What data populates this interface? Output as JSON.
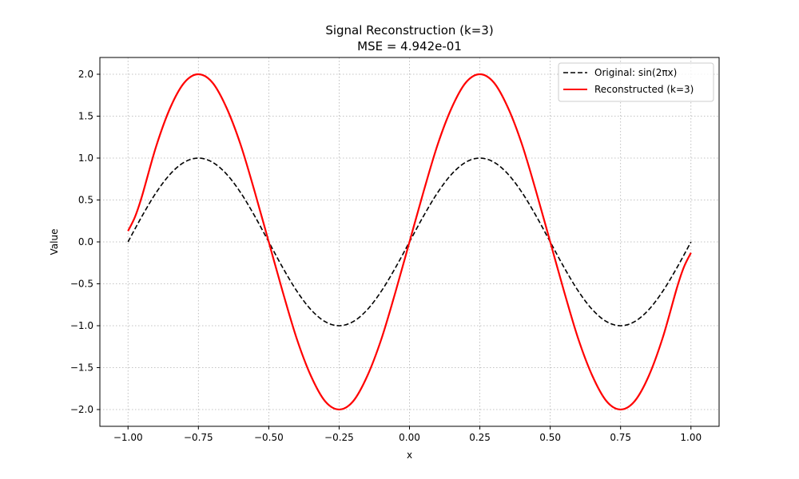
{
  "chart_data": {
    "type": "line",
    "title": "Signal Reconstruction (k=3)",
    "subtitle": "MSE = 4.942e-01",
    "xlabel": "x",
    "ylabel": "Value",
    "xlim": [
      -1.1,
      1.1
    ],
    "ylim": [
      -2.2,
      2.2
    ],
    "grid": true,
    "legend_position": "top-right",
    "xticks": [
      -1.0,
      -0.75,
      -0.5,
      -0.25,
      0.0,
      0.25,
      0.5,
      0.75,
      1.0
    ],
    "xtick_labels": [
      "−1.00",
      "−0.75",
      "−0.50",
      "−0.25",
      "0.00",
      "0.25",
      "0.50",
      "0.75",
      "1.00"
    ],
    "yticks": [
      -2.0,
      -1.5,
      -1.0,
      -0.5,
      0.0,
      0.5,
      1.0,
      1.5,
      2.0
    ],
    "ytick_labels": [
      "−2.0",
      "−1.5",
      "−1.0",
      "−0.5",
      "0.0",
      "0.5",
      "1.0",
      "1.5",
      "2.0"
    ],
    "series": [
      {
        "name": "Original: sin(2πx)",
        "color": "#000000",
        "style": "dashed",
        "x": [
          -1.0,
          -0.95,
          -0.9,
          -0.85,
          -0.8,
          -0.75,
          -0.7,
          -0.65,
          -0.6,
          -0.55,
          -0.5,
          -0.45,
          -0.4,
          -0.35,
          -0.3,
          -0.25,
          -0.2,
          -0.15,
          -0.1,
          -0.05,
          0.0,
          0.05,
          0.1,
          0.15,
          0.2,
          0.25,
          0.3,
          0.35,
          0.4,
          0.45,
          0.5,
          0.55,
          0.6,
          0.65,
          0.7,
          0.75,
          0.8,
          0.85,
          0.9,
          0.95,
          1.0
        ],
        "y": [
          0.0,
          0.309,
          0.588,
          0.809,
          0.951,
          1.0,
          0.951,
          0.809,
          0.588,
          0.309,
          0.0,
          -0.309,
          -0.588,
          -0.809,
          -0.951,
          -1.0,
          -0.951,
          -0.809,
          -0.588,
          -0.309,
          0.0,
          0.309,
          0.588,
          0.809,
          0.951,
          1.0,
          0.951,
          0.809,
          0.588,
          0.309,
          0.0,
          -0.309,
          -0.588,
          -0.809,
          -0.951,
          -1.0,
          -0.951,
          -0.809,
          -0.588,
          -0.309,
          0.0
        ]
      },
      {
        "name": "Reconstructed (k=3)",
        "color": "#ff0000",
        "style": "solid",
        "x": [
          -1.0,
          -0.975,
          -0.95,
          -0.9,
          -0.85,
          -0.8,
          -0.75,
          -0.7,
          -0.65,
          -0.6,
          -0.55,
          -0.5,
          -0.45,
          -0.4,
          -0.35,
          -0.3,
          -0.25,
          -0.2,
          -0.15,
          -0.1,
          -0.05,
          0.0,
          0.05,
          0.1,
          0.15,
          0.2,
          0.25,
          0.3,
          0.35,
          0.4,
          0.45,
          0.5,
          0.55,
          0.6,
          0.65,
          0.7,
          0.75,
          0.8,
          0.85,
          0.9,
          0.95,
          0.975,
          1.0
        ],
        "y": [
          0.13,
          0.3,
          0.55,
          1.14,
          1.6,
          1.9,
          2.0,
          1.9,
          1.6,
          1.16,
          0.6,
          0.0,
          -0.6,
          -1.16,
          -1.6,
          -1.9,
          -2.0,
          -1.9,
          -1.6,
          -1.16,
          -0.6,
          0.0,
          0.6,
          1.16,
          1.6,
          1.9,
          2.0,
          1.9,
          1.6,
          1.16,
          0.6,
          0.0,
          -0.6,
          -1.16,
          -1.6,
          -1.9,
          -2.0,
          -1.9,
          -1.6,
          -1.14,
          -0.55,
          -0.3,
          -0.13
        ]
      }
    ]
  }
}
